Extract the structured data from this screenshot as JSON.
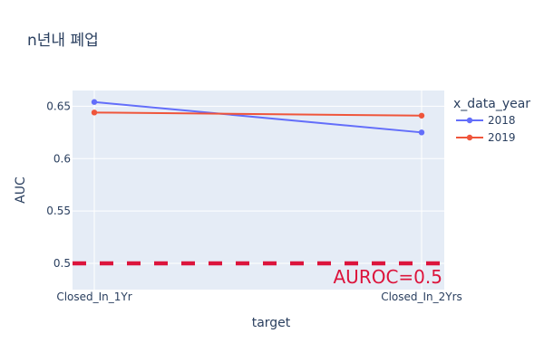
{
  "chart_data": {
    "type": "line",
    "title": "n년내 폐업",
    "xlabel": "target",
    "ylabel": "AUC",
    "categories": [
      "Closed_In_1Yr",
      "Closed_In_2Yrs"
    ],
    "ylim": [
      0.475,
      0.665
    ],
    "yticks": [
      0.5,
      0.55,
      0.6,
      0.65
    ],
    "ytick_labels": [
      "0.5",
      "0.55",
      "0.6",
      "0.65"
    ],
    "grid": true,
    "legend": {
      "title": "x_data_year",
      "placement": "right"
    },
    "series": [
      {
        "name": "2018",
        "color": "#636efa",
        "values": [
          0.654,
          0.625
        ]
      },
      {
        "name": "2019",
        "color": "#ef553b",
        "values": [
          0.644,
          0.641
        ]
      }
    ],
    "reference_line": {
      "y": 0.5,
      "color": "#dc143c",
      "style": "dashed",
      "label": "AUROC=0.5"
    },
    "plot_background": "#e5ecf6"
  }
}
